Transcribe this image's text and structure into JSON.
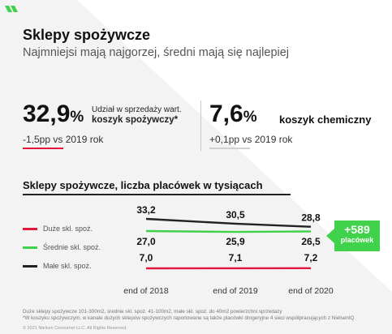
{
  "header": {
    "title": "Sklepy spożywcze",
    "subtitle": "Najmniejsi mają najgorzej, średni mają się najlepiej"
  },
  "kpis": {
    "left": {
      "value": "32,9",
      "unit": "%",
      "desc_line1": "Udział w sprzedaży wart.",
      "desc_line2": "koszyk spożywczy*",
      "change": "-1,5pp vs 2019 rok"
    },
    "right": {
      "value": "7,6",
      "unit": "%",
      "desc": "koszyk chemiczny",
      "change": "+0,1pp vs 2019 rok"
    }
  },
  "colors": {
    "red": "#e3163e",
    "green": "#40d24a",
    "black": "#222222",
    "accent": "#40d24a"
  },
  "badge": {
    "value": "+589",
    "label": "placówek"
  },
  "chart_data": {
    "type": "line",
    "title": "Sklepy spożywcze, liczba placówek w tysiącach",
    "categories": [
      "end of 2018",
      "end of 2019",
      "end of 2020"
    ],
    "series": [
      {
        "name": "Duże skl. spoż.",
        "color": "#e3163e",
        "values": [
          7.0,
          7.1,
          7.2
        ],
        "labels": [
          "7,0",
          "7,1",
          "7,2"
        ]
      },
      {
        "name": "Średnie skl. spoż.",
        "color": "#40d24a",
        "values": [
          27.0,
          25.9,
          26.5
        ],
        "labels": [
          "27,0",
          "25,9",
          "26,5"
        ]
      },
      {
        "name": "Małe skl. spoż.",
        "color": "#222222",
        "values": [
          33.2,
          30.5,
          28.8
        ],
        "labels": [
          "33,2",
          "30,5",
          "28,8"
        ]
      }
    ],
    "legend_position": "left",
    "grid": false
  },
  "footer": {
    "note_line1": "Duże sklepy spożywcze 101-300m2, średnie skl. spoż. 41-100m2, małe skl. spoż. do 40m2 powierzchni sprzedaży",
    "note_line2": "*W koszyku spożywczym, w kanale dużych sklepów spożywczych raportowane są także placówki drogeryjne 4 sieci współpracujących z NielsenIQ",
    "copyright": "© 2021 Nielsen Consumer LLC. All Rights Reserved."
  }
}
